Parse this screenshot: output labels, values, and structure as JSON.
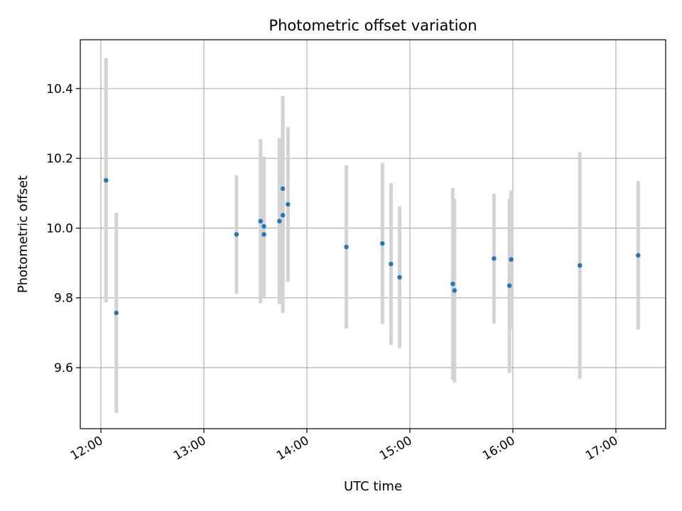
{
  "chart_data": {
    "type": "scatter",
    "title": "Photometric offset variation",
    "xlabel": "UTC time",
    "ylabel": "Photometric offset",
    "x_ticks": [
      "12:00",
      "13:00",
      "14:00",
      "15:00",
      "16:00",
      "17:00"
    ],
    "y_ticks": [
      "9.6",
      "9.8",
      "10.0",
      "10.2",
      "10.4"
    ],
    "xlim": [
      "11:48",
      "17:29"
    ],
    "ylim": [
      9.425,
      10.54
    ],
    "grid": true,
    "colors": {
      "point": "#1f77b4",
      "errorbar": "#d3d3d3",
      "grid": "#b0b0b0"
    },
    "points": [
      {
        "x": "12:03",
        "y": 10.137,
        "err": 0.35
      },
      {
        "x": "12:09",
        "y": 9.757,
        "err": 0.287
      },
      {
        "x": "13:19",
        "y": 9.982,
        "err": 0.17
      },
      {
        "x": "13:33",
        "y": 10.02,
        "err": 0.235
      },
      {
        "x": "13:35",
        "y": 10.005,
        "err": 0.2
      },
      {
        "x": "13:35",
        "y": 9.982,
        "err": 0.18
      },
      {
        "x": "13:44",
        "y": 10.02,
        "err": 0.238
      },
      {
        "x": "13:46",
        "y": 10.113,
        "err": 0.266
      },
      {
        "x": "13:46",
        "y": 10.037,
        "err": 0.28
      },
      {
        "x": "13:49",
        "y": 10.068,
        "err": 0.222
      },
      {
        "x": "14:23",
        "y": 9.946,
        "err": 0.234
      },
      {
        "x": "14:44",
        "y": 9.956,
        "err": 0.231
      },
      {
        "x": "14:49",
        "y": 9.897,
        "err": 0.232
      },
      {
        "x": "14:54",
        "y": 9.859,
        "err": 0.203
      },
      {
        "x": "15:25",
        "y": 9.84,
        "err": 0.275
      },
      {
        "x": "15:26",
        "y": 9.821,
        "err": 0.264
      },
      {
        "x": "15:49",
        "y": 9.913,
        "err": 0.186
      },
      {
        "x": "15:58",
        "y": 9.835,
        "err": 0.25
      },
      {
        "x": "15:59",
        "y": 9.91,
        "err": 0.198
      },
      {
        "x": "16:39",
        "y": 9.893,
        "err": 0.325
      },
      {
        "x": "17:13",
        "y": 9.922,
        "err": 0.213
      }
    ]
  }
}
